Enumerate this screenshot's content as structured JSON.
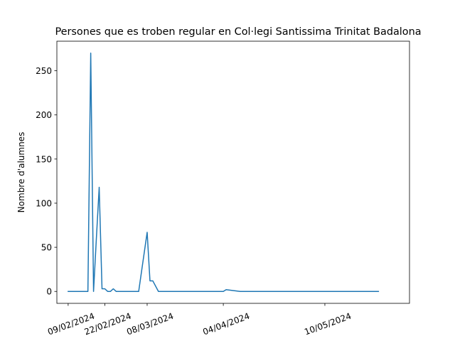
{
  "chart_data": {
    "type": "line",
    "title": "Persones que es troben regular en Col·legi Santissima Trinitat Badalona",
    "xlabel": "",
    "ylabel": "Nombre d'alumnes",
    "ylim": [
      -13.5,
      283.5
    ],
    "xlim": [
      "2024-02-05",
      "2024-06-09"
    ],
    "grid": false,
    "legend": "none",
    "line_color": "#1f77b4",
    "xticks": [
      {
        "date": "2024-02-09",
        "label": "09/02/2024"
      },
      {
        "date": "2024-02-22",
        "label": "22/02/2024"
      },
      {
        "date": "2024-03-08",
        "label": "08/03/2024"
      },
      {
        "date": "2024-04-04",
        "label": "04/04/2024"
      },
      {
        "date": "2024-05-10",
        "label": "10/05/2024"
      }
    ],
    "yticks": [
      0,
      50,
      100,
      150,
      200,
      250
    ],
    "x": [
      "2024-02-09",
      "2024-02-10",
      "2024-02-11",
      "2024-02-12",
      "2024-02-13",
      "2024-02-14",
      "2024-02-15",
      "2024-02-16",
      "2024-02-17",
      "2024-02-18",
      "2024-02-19",
      "2024-02-20",
      "2024-02-21",
      "2024-02-22",
      "2024-02-23",
      "2024-02-24",
      "2024-02-25",
      "2024-02-26",
      "2024-02-27",
      "2024-02-28",
      "2024-02-29",
      "2024-03-01",
      "2024-03-05",
      "2024-03-08",
      "2024-03-09",
      "2024-03-10",
      "2024-03-12",
      "2024-03-18",
      "2024-03-24",
      "2024-03-31",
      "2024-04-04",
      "2024-04-05",
      "2024-04-10",
      "2024-04-20",
      "2024-05-01",
      "2024-05-10",
      "2024-05-20",
      "2024-05-29"
    ],
    "values": [
      0,
      0,
      0,
      0,
      0,
      0,
      0,
      0,
      270,
      0,
      60,
      118,
      3,
      3,
      0,
      0,
      3,
      0,
      0,
      0,
      0,
      0,
      0,
      67,
      12,
      12,
      0,
      0,
      0,
      0,
      0,
      2,
      0,
      0,
      0,
      0,
      0,
      0
    ]
  }
}
